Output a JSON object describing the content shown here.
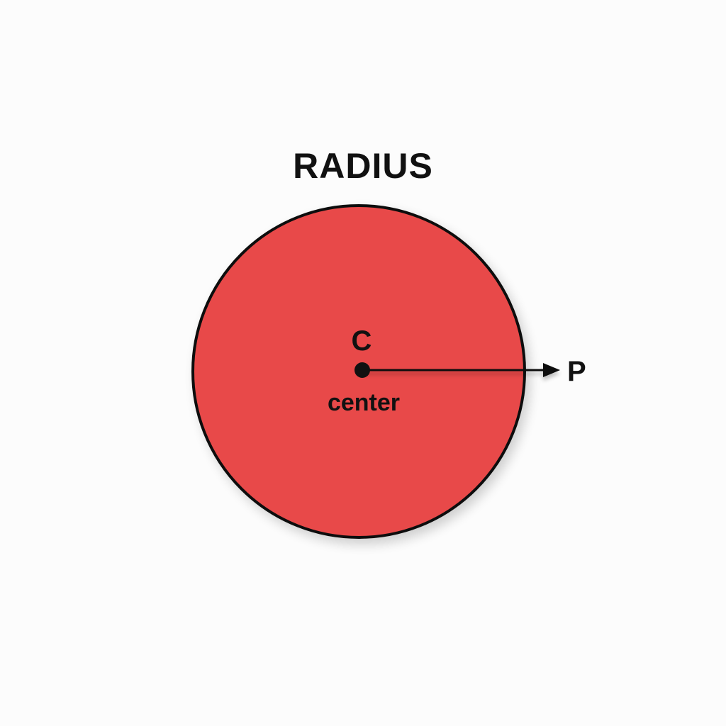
{
  "diagram": {
    "title": "RADIUS",
    "center_label": "C",
    "center_caption": "center",
    "point_label": "P"
  },
  "colors": {
    "background": "#fcfcfc",
    "circle_fill": "#e84a48",
    "stroke": "#111111",
    "text": "#111111"
  }
}
